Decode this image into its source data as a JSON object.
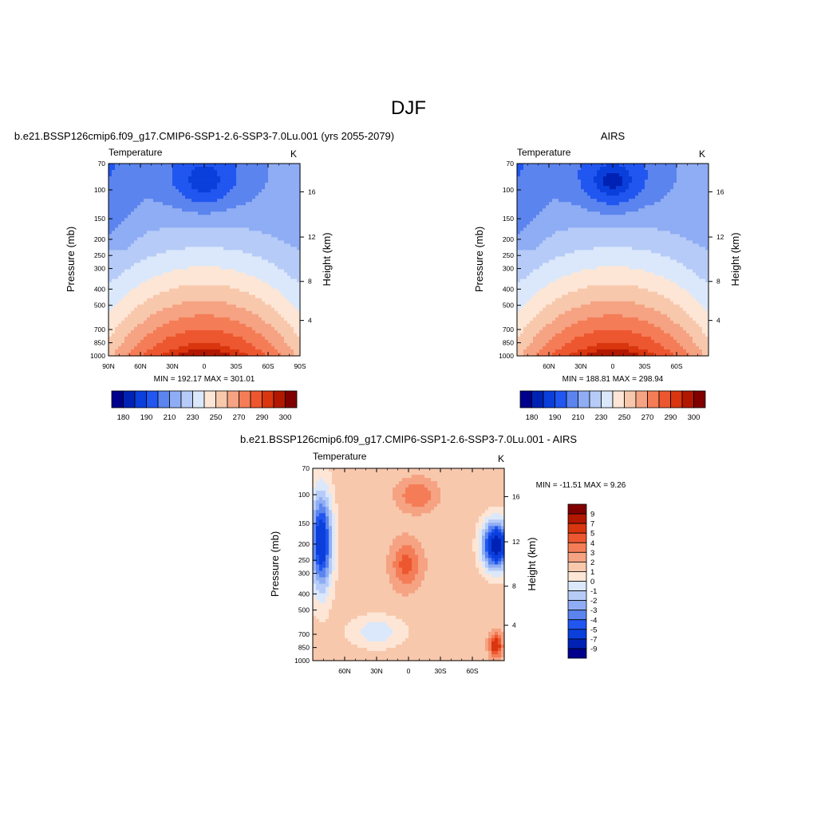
{
  "figure_title": "DJF",
  "chart_data": [
    {
      "type": "heatmap",
      "title": "b.e21.BSSP126cmip6.f09_g17.CMIP6-SSP1-2.6-SSP3-7.0Lu.001 (yrs 2055-2079)",
      "variable": "Temperature",
      "units": "K",
      "ylabel": "Pressure (mb)",
      "ylabel_right": "Height (km)",
      "x_ticks": [
        "90N",
        "60N",
        "30N",
        "0",
        "30S",
        "60S",
        "90S"
      ],
      "y_ticks": [
        "70",
        "100",
        "150",
        "200",
        "250",
        "300",
        "400",
        "500",
        "700",
        "850",
        "1000"
      ],
      "y_ticks_right": [
        "16",
        "12",
        "8",
        "4"
      ],
      "stats": "MIN = 192.17  MAX = 301.01",
      "colorbar_labels": [
        "180",
        "190",
        "210",
        "230",
        "250",
        "270",
        "290",
        "300"
      ],
      "colorbar_colors": [
        "#00008c",
        "#0022b4",
        "#0a3fdc",
        "#2156f0",
        "#5b84ee",
        "#8fadf4",
        "#b6cbf7",
        "#dbe8fb",
        "#fde6d6",
        "#f8c8ad",
        "#f5a383",
        "#f47d57",
        "#ed5730",
        "#d9360f",
        "#b21800",
        "#800000"
      ]
    },
    {
      "type": "heatmap",
      "title": "AIRS",
      "variable": "Temperature",
      "units": "K",
      "x_ticks": [
        "60N",
        "30N",
        "0",
        "30S",
        "60S"
      ],
      "y_ticks": [
        "70",
        "100",
        "150",
        "200",
        "250",
        "300",
        "400",
        "500",
        "700",
        "850",
        "1000"
      ],
      "y_ticks_right": [
        "16",
        "12",
        "8",
        "4"
      ],
      "ylabel": "Pressure (mb)",
      "ylabel_right": "Height (km)",
      "stats": "MIN = 188.81  MAX = 298.94",
      "colorbar_labels": [
        "180",
        "190",
        "210",
        "230",
        "250",
        "270",
        "290",
        "300"
      ]
    },
    {
      "type": "heatmap",
      "title": "b.e21.BSSP126cmip6.f09_g17.CMIP6-SSP1-2.6-SSP3-7.0Lu.001 - AIRS",
      "variable": "Temperature",
      "units": "K",
      "ylabel": "Pressure (mb)",
      "ylabel_right": "Height (km)",
      "x_ticks": [
        "60N",
        "30N",
        "0",
        "30S",
        "60S"
      ],
      "y_ticks": [
        "70",
        "100",
        "150",
        "200",
        "250",
        "300",
        "400",
        "500",
        "700",
        "850",
        "1000"
      ],
      "y_ticks_right": [
        "16",
        "12",
        "8",
        "4"
      ],
      "stats": "MIN = -11.51  MAX =   9.26",
      "colorbar_labels": [
        "9",
        "7",
        "5",
        "4",
        "3",
        "2",
        "1",
        "0",
        "-1",
        "-2",
        "-3",
        "-4",
        "-5",
        "-7",
        "-9"
      ],
      "colorbar_colors": [
        "#800000",
        "#b21800",
        "#d9360f",
        "#ed5730",
        "#f47d57",
        "#f5a383",
        "#f8c8ad",
        "#fde6d6",
        "#dbe8fb",
        "#b6cbf7",
        "#8fadf4",
        "#5b84ee",
        "#2156f0",
        "#0a3fdc",
        "#0022b4",
        "#00008c"
      ]
    }
  ]
}
